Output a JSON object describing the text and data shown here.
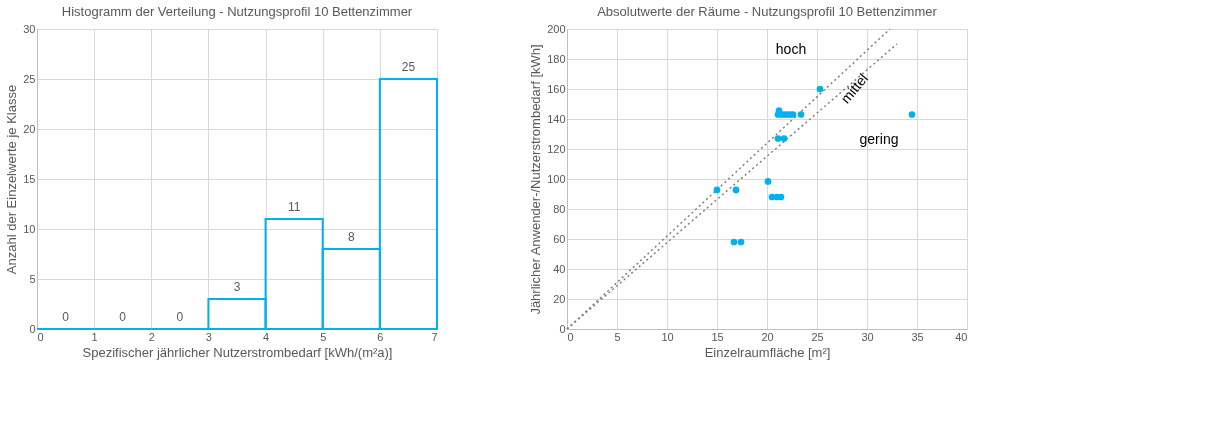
{
  "chart_data": [
    {
      "type": "histogram",
      "title": "Histogramm der Verteilung - Nutzungsprofil  10 Bettenzimmer",
      "xlabel": "Spezifischer jährlicher Nutzerstrombedarf [kWh/(m²a)]",
      "ylabel": "Anzahl der Einzelwerte je Klasse",
      "bins": [
        0,
        1,
        2,
        3,
        4,
        5,
        6,
        7
      ],
      "values": [
        0,
        0,
        0,
        3,
        11,
        8,
        25
      ],
      "color": "#00b0f0",
      "xlim": [
        0,
        7
      ],
      "xticks": [
        0,
        1,
        2,
        3,
        4,
        5,
        6,
        7
      ],
      "ylim": [
        0,
        30
      ],
      "yticks": [
        0,
        5,
        10,
        15,
        20,
        25,
        30
      ],
      "grid": true,
      "data_labels": true
    },
    {
      "type": "scatter",
      "title": "Absolutwerte der Räume - Nutzungsprofil 10 Bettenzimmer",
      "xlabel": "Einzelraumfläche [m²]",
      "ylabel": "Jährlicher Anwender-/Nutzerstrombedarf [kWh]",
      "xlim": [
        0,
        40
      ],
      "xticks": [
        0,
        5,
        10,
        15,
        20,
        25,
        30,
        35,
        40
      ],
      "ylim": [
        0,
        200
      ],
      "yticks": [
        0,
        20,
        40,
        60,
        80,
        100,
        120,
        140,
        160,
        180,
        200
      ],
      "grid": true,
      "series": [
        {
          "type": "scatter",
          "color": "#00b0f0",
          "marker": "circle",
          "x": [
            15.0,
            16.9,
            16.7,
            17.4,
            20.1,
            20.5,
            21.0,
            21.4,
            21.1,
            21.7,
            21.2,
            21.1,
            21.4,
            21.7,
            22.0,
            22.3,
            22.6,
            23.4,
            25.3,
            34.5
          ],
          "values": [
            92.7,
            92.7,
            58,
            58,
            98.4,
            88,
            88,
            88,
            127,
            127,
            145.6,
            143,
            143,
            143,
            143,
            143,
            143,
            143,
            160,
            143
          ]
        },
        {
          "type": "line",
          "color": "#7f7f7f",
          "line_style": "dotted",
          "marker": "none",
          "x": [
            0,
            32.3
          ],
          "values": [
            0,
            200
          ]
        },
        {
          "type": "line",
          "color": "#7f7f7f",
          "line_style": "dotted",
          "marker": "none",
          "x": [
            0,
            33.0
          ],
          "values": [
            0,
            190
          ]
        }
      ],
      "annotations": [
        "hoch",
        "mittel",
        "gering"
      ]
    }
  ]
}
